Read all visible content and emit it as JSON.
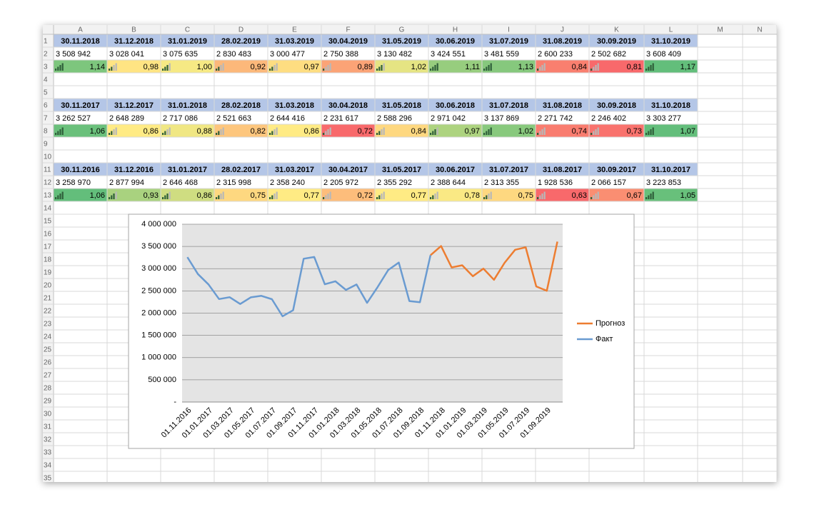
{
  "sheet": {
    "columns": [
      "A",
      "B",
      "C",
      "D",
      "E",
      "F",
      "G",
      "H",
      "I",
      "J",
      "K",
      "L",
      "M",
      "N"
    ],
    "row_numbers": [
      1,
      2,
      3,
      4,
      5,
      6,
      7,
      8,
      9,
      10,
      11,
      12,
      13,
      14,
      15,
      16,
      17,
      18,
      19,
      20,
      21,
      22,
      23,
      24,
      25,
      26,
      27,
      28,
      29,
      30,
      31,
      32,
      33,
      34,
      35
    ]
  },
  "table": {
    "blocks": [
      {
        "dates": [
          "30.11.2018",
          "31.12.2018",
          "31.01.2019",
          "28.02.2019",
          "31.03.2019",
          "30.04.2019",
          "31.05.2019",
          "30.06.2019",
          "31.07.2019",
          "31.08.2019",
          "30.09.2019",
          "31.10.2019"
        ],
        "values": [
          "3 508 942",
          "3 028 041",
          "3 075 635",
          "2 830 483",
          "3 000 477",
          "2 750 388",
          "3 130 482",
          "3 424 551",
          "3 481 559",
          "2 600 233",
          "2 502 682",
          "3 608 409"
        ],
        "ratios": [
          {
            "value": 1.14,
            "label": "1,14"
          },
          {
            "value": 0.98,
            "label": "0,98"
          },
          {
            "value": 1.0,
            "label": "1,00"
          },
          {
            "value": 0.92,
            "label": "0,92"
          },
          {
            "value": 0.97,
            "label": "0,97"
          },
          {
            "value": 0.89,
            "label": "0,89"
          },
          {
            "value": 1.02,
            "label": "1,02"
          },
          {
            "value": 1.11,
            "label": "1,11"
          },
          {
            "value": 1.13,
            "label": "1,13"
          },
          {
            "value": 0.84,
            "label": "0,84"
          },
          {
            "value": 0.81,
            "label": "0,81"
          },
          {
            "value": 1.17,
            "label": "1,17"
          }
        ]
      },
      {
        "dates": [
          "30.11.2017",
          "31.12.2017",
          "31.01.2018",
          "28.02.2018",
          "31.03.2018",
          "30.04.2018",
          "31.05.2018",
          "30.06.2018",
          "31.07.2018",
          "31.08.2018",
          "30.09.2018",
          "31.10.2018"
        ],
        "values": [
          "3 262 527",
          "2 648 289",
          "2 717 086",
          "2 521 663",
          "2 644 416",
          "2 231 617",
          "2 588 296",
          "2 971 042",
          "3 137 869",
          "2 271 742",
          "2 246 402",
          "3 303 277"
        ],
        "ratios": [
          {
            "value": 1.06,
            "label": "1,06"
          },
          {
            "value": 0.86,
            "label": "0,86"
          },
          {
            "value": 0.88,
            "label": "0,88"
          },
          {
            "value": 0.82,
            "label": "0,82"
          },
          {
            "value": 0.86,
            "label": "0,86"
          },
          {
            "value": 0.72,
            "label": "0,72"
          },
          {
            "value": 0.84,
            "label": "0,84"
          },
          {
            "value": 0.97,
            "label": "0,97"
          },
          {
            "value": 1.02,
            "label": "1,02"
          },
          {
            "value": 0.74,
            "label": "0,74"
          },
          {
            "value": 0.73,
            "label": "0,73"
          },
          {
            "value": 1.07,
            "label": "1,07"
          }
        ]
      },
      {
        "dates": [
          "30.11.2016",
          "31.12.2016",
          "31.01.2017",
          "28.02.2017",
          "31.03.2017",
          "30.04.2017",
          "31.05.2017",
          "30.06.2017",
          "31.07.2017",
          "31.08.2017",
          "30.09.2017",
          "31.10.2017"
        ],
        "values": [
          "3 258 970",
          "2 877 994",
          "2 646 468",
          "2 315 998",
          "2 358 240",
          "2 205 972",
          "2 355 292",
          "2 388 644",
          "2 313 355",
          "1 928 536",
          "2 066 157",
          "3 223 853"
        ],
        "ratios": [
          {
            "value": 1.06,
            "label": "1,06"
          },
          {
            "value": 0.93,
            "label": "0,93"
          },
          {
            "value": 0.86,
            "label": "0,86"
          },
          {
            "value": 0.75,
            "label": "0,75"
          },
          {
            "value": 0.77,
            "label": "0,77"
          },
          {
            "value": 0.72,
            "label": "0,72"
          },
          {
            "value": 0.77,
            "label": "0,77"
          },
          {
            "value": 0.78,
            "label": "0,78"
          },
          {
            "value": 0.75,
            "label": "0,75"
          },
          {
            "value": 0.63,
            "label": "0,63"
          },
          {
            "value": 0.67,
            "label": "0,67"
          },
          {
            "value": 1.05,
            "label": "1,05"
          }
        ]
      }
    ]
  },
  "chart_data": {
    "type": "line",
    "categories": [
      "01.11.2016",
      null,
      "01.01.2017",
      null,
      "01.03.2017",
      null,
      "01.05.2017",
      null,
      "01.07.2017",
      null,
      "01.09.2017",
      null,
      "01.11.2017",
      null,
      "01.01.2018",
      null,
      "01.03.2018",
      null,
      "01.05.2018",
      null,
      "01.07.2018",
      null,
      "01.09.2018",
      null,
      "01.11.2018",
      null,
      "01.01.2019",
      null,
      "01.03.2019",
      null,
      "01.05.2019",
      null,
      "01.07.2019",
      null,
      "01.09.2019",
      null
    ],
    "series": [
      {
        "name": "Прогноз",
        "color": "#ed7d31",
        "values": [
          null,
          null,
          null,
          null,
          null,
          null,
          null,
          null,
          null,
          null,
          null,
          null,
          null,
          null,
          null,
          null,
          null,
          null,
          null,
          null,
          null,
          null,
          null,
          3303277,
          3508942,
          3028041,
          3075635,
          2830483,
          3000477,
          2750388,
          3130482,
          3424551,
          3481559,
          2600233,
          2502682,
          3608409
        ]
      },
      {
        "name": "Факт",
        "color": "#6a9bd1",
        "values": [
          3258970,
          2877994,
          2646468,
          2315998,
          2358240,
          2205972,
          2355292,
          2388644,
          2313355,
          1928536,
          2066157,
          3223853,
          3262527,
          2648289,
          2717086,
          2521663,
          2644416,
          2231617,
          2588296,
          2971042,
          3137869,
          2271742,
          2246402,
          3303277,
          null,
          null,
          null,
          null,
          null,
          null,
          null,
          null,
          null,
          null,
          null,
          null
        ]
      }
    ],
    "ylim": [
      0,
      4000000
    ],
    "yticks": [
      {
        "value": 0,
        "label": "-"
      },
      {
        "value": 500000,
        "label": "500 000"
      },
      {
        "value": 1000000,
        "label": "1 000 000"
      },
      {
        "value": 1500000,
        "label": "1 500 000"
      },
      {
        "value": 2000000,
        "label": "2 000 000"
      },
      {
        "value": 2500000,
        "label": "2 500 000"
      },
      {
        "value": 3000000,
        "label": "3 000 000"
      },
      {
        "value": 3500000,
        "label": "3 500 000"
      },
      {
        "value": 4000000,
        "label": "4 000 000"
      }
    ],
    "grid": true,
    "legend": "right"
  }
}
